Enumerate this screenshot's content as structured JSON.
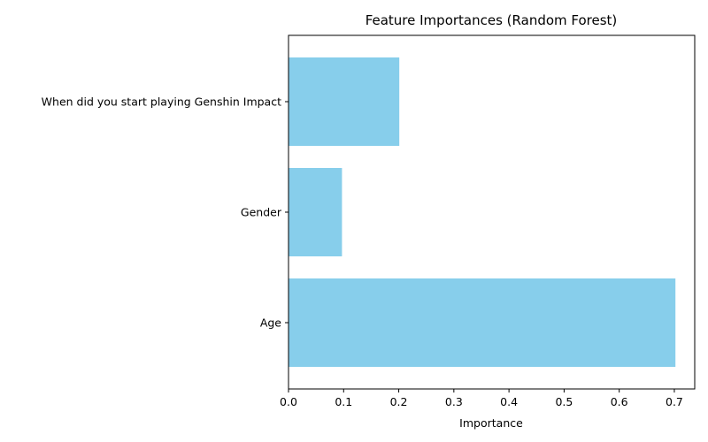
{
  "chart_data": {
    "type": "bar",
    "orientation": "horizontal",
    "title": "Feature Importances (Random Forest)",
    "xlabel": "Importance",
    "ylabel": "",
    "categories": [
      "Age",
      "Gender",
      "When did you start playing Genshin Impact"
    ],
    "values": [
      0.702,
      0.097,
      0.201
    ],
    "xlim": [
      0,
      0.737
    ],
    "xticks": [
      0,
      0.1,
      0.2,
      0.3,
      0.4,
      0.5,
      0.6,
      0.7
    ],
    "xtick_labels": [
      "0.0",
      "0.1",
      "0.2",
      "0.3",
      "0.4",
      "0.5",
      "0.6",
      "0.7"
    ],
    "bar_color": "#87ceeb",
    "grid": false,
    "legend": "none"
  }
}
